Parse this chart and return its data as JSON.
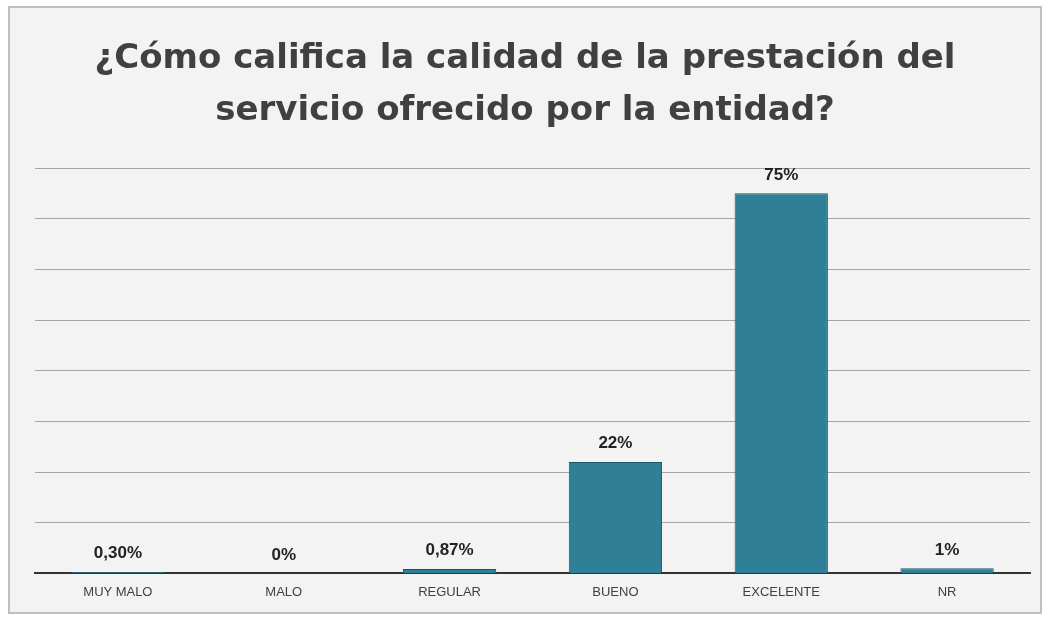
{
  "chart_data": {
    "type": "bar",
    "title": "¿Cómo califica la calidad de la prestación del servicio ofrecido por la entidad?",
    "categories": [
      "MUY MALO",
      "MALO",
      "REGULAR",
      "BUENO",
      "EXCELENTE",
      "NR"
    ],
    "values": [
      0.3,
      0,
      0.87,
      22,
      75,
      1
    ],
    "value_labels": [
      "0,30%",
      "0%",
      "0,87%",
      "22%",
      "75%",
      "1%"
    ],
    "color": "#2f7f96",
    "ylim": [
      0,
      80
    ],
    "yticks": [
      {
        "value": 0,
        "label": null
      },
      {
        "value": 10,
        "label": null
      },
      {
        "value": 20,
        "label": null
      },
      {
        "value": 30,
        "label": null
      },
      {
        "value": 40,
        "label": null
      },
      {
        "value": 50,
        "label": null
      },
      {
        "value": 60,
        "label": null
      },
      {
        "value": 70,
        "label": null
      },
      {
        "value": 80,
        "label": null
      }
    ],
    "tick_labels": "x",
    "grid": "y"
  }
}
